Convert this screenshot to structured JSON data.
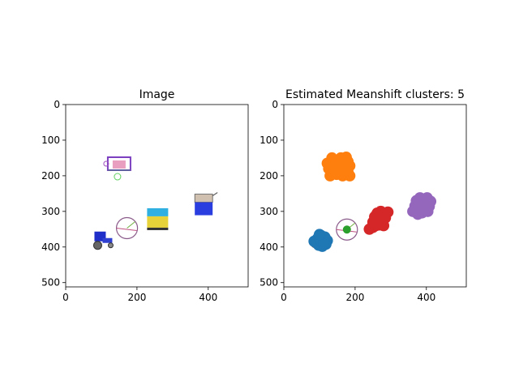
{
  "chart_data": [
    {
      "type": "image",
      "title": "Image",
      "xlim": [
        0,
        512
      ],
      "ylim": [
        512,
        0
      ],
      "x_ticks": [
        0,
        200,
        400
      ],
      "y_ticks": [
        0,
        100,
        200,
        300,
        400,
        500
      ],
      "icons": [
        {
          "name": "pink-machine-icon",
          "x": 150,
          "y": 198,
          "color": "#7b3fbf"
        },
        {
          "name": "blue-tractor-icon",
          "x": 108,
          "y": 384,
          "color": "#1f2ec8"
        },
        {
          "name": "circle-gauge-icon",
          "x": 172,
          "y": 347,
          "color": "#8a5a8a"
        },
        {
          "name": "yellow-box-icon",
          "x": 258,
          "y": 323,
          "color": "#e8d23a"
        },
        {
          "name": "blue-cart-icon",
          "x": 385,
          "y": 288,
          "color": "#2a3ee0"
        }
      ]
    },
    {
      "type": "scatter",
      "title": "Estimated Meanshift clusters: 5",
      "xlim": [
        0,
        512
      ],
      "ylim": [
        512,
        0
      ],
      "x_ticks": [
        0,
        200,
        400
      ],
      "y_ticks": [
        0,
        100,
        200,
        300,
        400,
        500
      ],
      "series": [
        {
          "color": "#ff7f0e",
          "points": [
            [
              122,
              165
            ],
            [
              135,
              150
            ],
            [
              148,
              160
            ],
            [
              160,
              150
            ],
            [
              175,
              148
            ],
            [
              180,
              160
            ],
            [
              185,
              172
            ],
            [
              172,
              182
            ],
            [
              160,
              190
            ],
            [
              148,
              196
            ],
            [
              136,
              190
            ],
            [
              126,
              180
            ],
            [
              140,
              175
            ],
            [
              155,
              172
            ],
            [
              168,
              170
            ],
            [
              180,
              190
            ],
            [
              165,
              200
            ],
            [
              150,
              185
            ],
            [
              130,
              200
            ],
            [
              185,
              200
            ]
          ]
        },
        {
          "color": "#1f77b4",
          "points": [
            [
              85,
              384
            ],
            [
              95,
              376
            ],
            [
              105,
              368
            ],
            [
              115,
              372
            ],
            [
              122,
              382
            ],
            [
              118,
              392
            ],
            [
              108,
              398
            ],
            [
              98,
              395
            ],
            [
              92,
              388
            ],
            [
              104,
              382
            ],
            [
              112,
              388
            ],
            [
              100,
              365
            ]
          ]
        },
        {
          "color": "#2ca02c",
          "points": [
            [
              177,
              351
            ]
          ]
        },
        {
          "color": "#d62728",
          "points": [
            [
              240,
              350
            ],
            [
              250,
              330
            ],
            [
              255,
              315
            ],
            [
              262,
              305
            ],
            [
              272,
              300
            ],
            [
              282,
              305
            ],
            [
              292,
              302
            ],
            [
              285,
              318
            ],
            [
              278,
              330
            ],
            [
              268,
              338
            ],
            [
              258,
              340
            ],
            [
              262,
              322
            ],
            [
              272,
              318
            ],
            [
              280,
              340
            ],
            [
              250,
              345
            ]
          ]
        },
        {
          "color": "#9467bd",
          "points": [
            [
              362,
              300
            ],
            [
              368,
              285
            ],
            [
              372,
              270
            ],
            [
              382,
              262
            ],
            [
              392,
              268
            ],
            [
              402,
              262
            ],
            [
              412,
              272
            ],
            [
              408,
              286
            ],
            [
              398,
              296
            ],
            [
              388,
              304
            ],
            [
              376,
              308
            ],
            [
              368,
              296
            ],
            [
              384,
              282
            ],
            [
              396,
              280
            ],
            [
              380,
              292
            ],
            [
              404,
              300
            ]
          ]
        }
      ],
      "overlays": [
        {
          "name": "circle-gauge-icon",
          "x": 177,
          "y": 351,
          "color": "#8a5a8a"
        },
        {
          "name": "tractor-wheel-icon",
          "x": 88,
          "y": 390,
          "color": "#555555"
        }
      ]
    }
  ]
}
